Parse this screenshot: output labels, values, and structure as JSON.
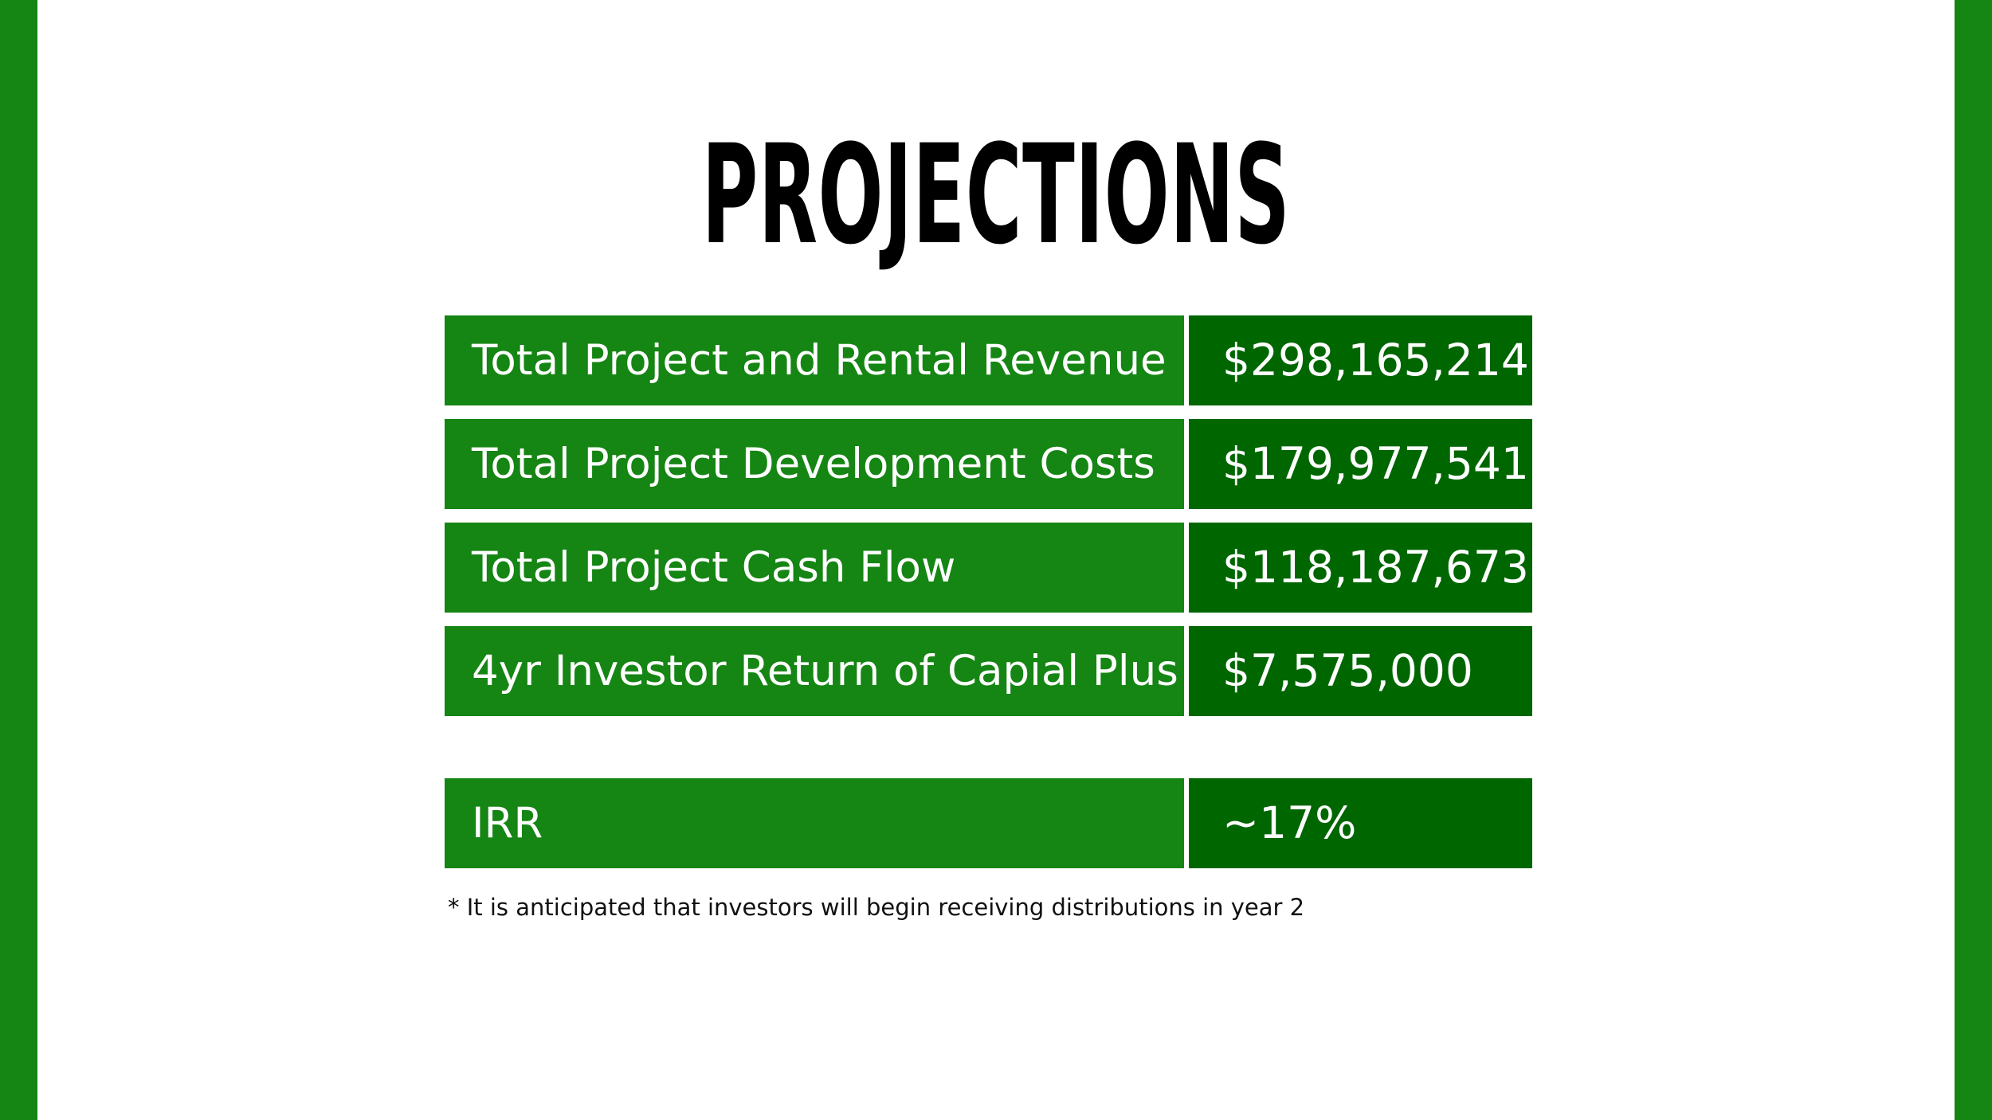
{
  "colors": {
    "side_bar": "#158513",
    "label_cell": "#158513",
    "value_cell": "#006600",
    "text_on_green": "#ffffff",
    "title": "#000000"
  },
  "title": "PROJECTIONS",
  "rows": [
    {
      "label": "Total Project and Rental Revenue",
      "value": "$298,165,214"
    },
    {
      "label": "Total Project Development Costs",
      "value": "$179,977,541"
    },
    {
      "label": "Total Project Cash Flow",
      "value": "$118,187,673"
    },
    {
      "label": "4yr Investor Return of Capial Plus",
      "value": "$7,575,000"
    }
  ],
  "irr": {
    "label": "IRR",
    "value": "~17%"
  },
  "footnote": "* It is anticipated that investors will begin receiving distributions in year 2"
}
